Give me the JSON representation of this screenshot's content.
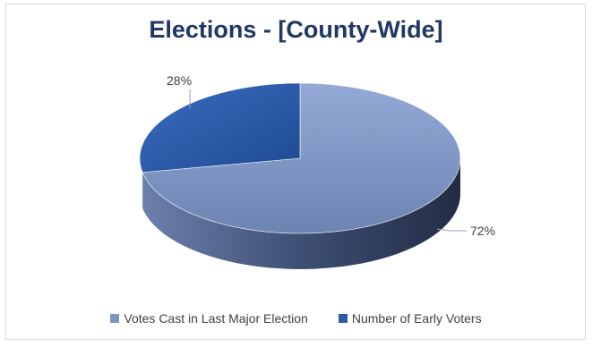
{
  "chart_data": {
    "type": "pie",
    "title": "Elections - [County-Wide]",
    "categories": [
      "Votes Cast in Last Major Election",
      "Number of Early Voters"
    ],
    "values": [
      72,
      28
    ],
    "data_labels": [
      "72%",
      "28%"
    ],
    "colors": [
      "#7d95c4",
      "#2b5aa6"
    ],
    "legend_placement": "bottom",
    "style": "3d"
  }
}
